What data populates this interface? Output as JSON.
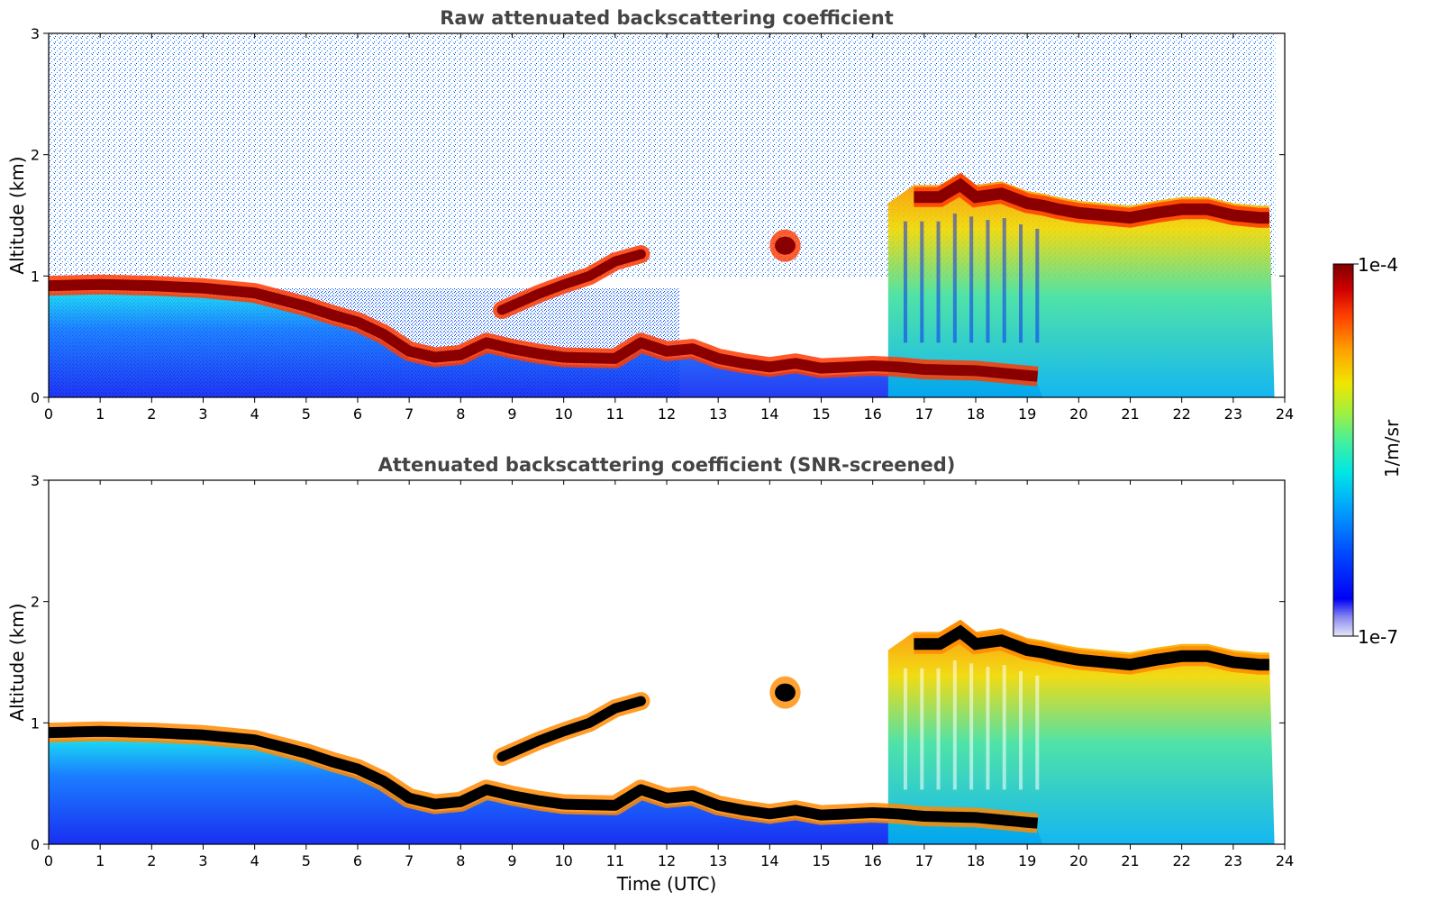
{
  "figure": {
    "colorbar": {
      "label": "1/m/sr",
      "min_label": "1e-7",
      "max_label": "1e-4",
      "colormap": [
        "#e6e6f8",
        "#8a8af0",
        "#0000f5",
        "#0048ff",
        "#00a0ff",
        "#00e6e6",
        "#40f0a0",
        "#a0f040",
        "#f0e600",
        "#ffa000",
        "#ff4000",
        "#d00000",
        "#800000"
      ]
    }
  },
  "chart_data": [
    {
      "type": "heatmap",
      "title": "Raw attenuated backscattering coefficient",
      "xlabel": "",
      "ylabel": "Altitude (km)",
      "xlim": [
        0,
        24
      ],
      "ylim": [
        0,
        3
      ],
      "xticks": [
        "0",
        "1",
        "2",
        "3",
        "4",
        "5",
        "6",
        "7",
        "8",
        "9",
        "10",
        "11",
        "12",
        "13",
        "14",
        "15",
        "16",
        "17",
        "18",
        "19",
        "20",
        "21",
        "22",
        "23",
        "24"
      ],
      "yticks": [
        "0",
        "1",
        "2",
        "3"
      ],
      "grid": false,
      "colorscale": "log",
      "zlim": [
        "1e-7",
        "1e-4"
      ],
      "features": {
        "main_layer_top_km": [
          [
            0,
            0.92
          ],
          [
            1,
            0.93
          ],
          [
            2,
            0.92
          ],
          [
            3,
            0.9
          ],
          [
            4,
            0.86
          ],
          [
            5,
            0.75
          ],
          [
            5.5,
            0.68
          ],
          [
            6,
            0.62
          ],
          [
            6.5,
            0.52
          ],
          [
            7,
            0.38
          ],
          [
            7.5,
            0.33
          ],
          [
            8,
            0.35
          ],
          [
            8.5,
            0.45
          ],
          [
            9,
            0.4
          ],
          [
            9.5,
            0.36
          ],
          [
            10,
            0.33
          ],
          [
            11,
            0.32
          ],
          [
            11.5,
            0.45
          ],
          [
            12,
            0.38
          ],
          [
            12.5,
            0.4
          ],
          [
            13,
            0.32
          ],
          [
            13.5,
            0.28
          ],
          [
            14,
            0.25
          ],
          [
            14.5,
            0.28
          ],
          [
            15,
            0.24
          ],
          [
            15.5,
            0.25
          ],
          [
            16,
            0.26
          ],
          [
            16.5,
            0.25
          ],
          [
            17,
            0.23
          ],
          [
            18,
            0.22
          ],
          [
            19,
            0.18
          ],
          [
            19.3,
            0.17
          ]
        ],
        "elevated_layer_km": [
          [
            8.8,
            0.72
          ],
          [
            9.5,
            0.85
          ],
          [
            10,
            0.93
          ],
          [
            10.5,
            1.0
          ],
          [
            11,
            1.12
          ],
          [
            11.5,
            1.18
          ]
        ],
        "cloud_top_km": [
          [
            16.8,
            1.75
          ],
          [
            17.3,
            1.75
          ],
          [
            17.7,
            1.85
          ],
          [
            18,
            1.75
          ],
          [
            18.5,
            1.78
          ],
          [
            19,
            1.7
          ],
          [
            19.3,
            1.68
          ],
          [
            19.6,
            1.65
          ],
          [
            20,
            1.62
          ],
          [
            20.5,
            1.6
          ],
          [
            21,
            1.58
          ],
          [
            21.5,
            1.62
          ],
          [
            22,
            1.65
          ],
          [
            22.5,
            1.65
          ],
          [
            23,
            1.6
          ],
          [
            23.5,
            1.58
          ],
          [
            23.8,
            1.58
          ]
        ],
        "isolated_cloud_km": {
          "x": [
            14.0,
            14.6
          ],
          "y": [
            1.2,
            1.3
          ]
        }
      }
    },
    {
      "type": "heatmap",
      "title": "Attenuated backscattering coefficient (SNR-screened)",
      "xlabel": "Time (UTC)",
      "ylabel": "Altitude (km)",
      "xlim": [
        0,
        24
      ],
      "ylim": [
        0,
        3
      ],
      "xticks": [
        "0",
        "1",
        "2",
        "3",
        "4",
        "5",
        "6",
        "7",
        "8",
        "9",
        "10",
        "11",
        "12",
        "13",
        "14",
        "15",
        "16",
        "17",
        "18",
        "19",
        "20",
        "21",
        "22",
        "23",
        "24"
      ],
      "yticks": [
        "0",
        "1",
        "2",
        "3"
      ],
      "grid": false,
      "colorscale": "log",
      "zlim": [
        "1e-7",
        "1e-4"
      ]
    }
  ]
}
